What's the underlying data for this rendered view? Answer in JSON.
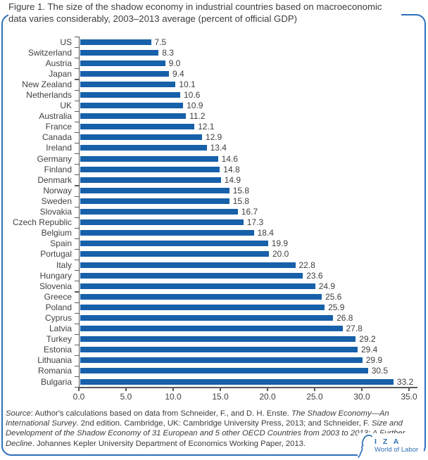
{
  "figure": {
    "title": "Figure 1. The size of the shadow economy in industrial countries based on macroeconomic data varies considerably, 2003–2013 average (percent of official GDP)"
  },
  "chart_data": {
    "type": "bar",
    "orientation": "horizontal",
    "title": "Figure 1. The size of the shadow economy in industrial countries based on macroeconomic data varies considerably, 2003–2013 average (percent of official GDP)",
    "xlabel": "",
    "ylabel": "",
    "xlim": [
      0,
      35
    ],
    "grid": false,
    "data_labels": true,
    "categories": [
      "US",
      "Switzerland",
      "Austria",
      "Japan",
      "New Zealand",
      "Netherlands",
      "UK",
      "Australia",
      "France",
      "Canada",
      "Ireland",
      "Germany",
      "Finland",
      "Denmark",
      "Norway",
      "Sweden",
      "Slovakia",
      "Czech Republic",
      "Belgium",
      "Spain",
      "Portugal",
      "Italy",
      "Hungary",
      "Slovenia",
      "Greece",
      "Poland",
      "Cyprus",
      "Latvia",
      "Turkey",
      "Estonia",
      "Lithuania",
      "Romania",
      "Bulgaria"
    ],
    "values": [
      7.5,
      8.3,
      9.0,
      9.4,
      10.1,
      10.6,
      10.9,
      11.2,
      12.1,
      12.9,
      13.4,
      14.6,
      14.8,
      14.9,
      15.8,
      15.8,
      16.7,
      17.3,
      18.4,
      19.9,
      20.0,
      22.8,
      23.6,
      24.9,
      25.6,
      25.9,
      26.8,
      27.8,
      29.2,
      29.4,
      29.9,
      30.5,
      33.2
    ],
    "x_ticks": [
      0,
      5,
      10,
      15,
      20,
      25,
      30,
      35
    ],
    "x_tick_labels": [
      "0.0",
      "5.0",
      "10.0",
      "15.0",
      "20.0",
      "25.0",
      "30.0",
      "35.0"
    ],
    "bar_color": "#1760aa"
  },
  "source_note": {
    "segments": [
      {
        "text": "Source",
        "italic": true
      },
      {
        "text": ": Author's calculations based on data from Schneider, F., and D. H. Enste. ",
        "italic": false
      },
      {
        "text": "The Shadow Economy—An International Survey",
        "italic": true
      },
      {
        "text": ". 2nd edition. Cambridge, UK: Cambridge University Press, 2013; and Schneider, F. ",
        "italic": false
      },
      {
        "text": "Size and Development of the Shadow Economy of 31 European and 5 other OECD Countries from 2003 to 2013: A Further Decline",
        "italic": true
      },
      {
        "text": ". Johannes Kepler University Department of Economics Working Paper, 2013.",
        "italic": false
      }
    ]
  },
  "logo": {
    "org": "I Z A",
    "tagline": "World of Labor"
  },
  "colors": {
    "frame": "#2c6fba",
    "bar": "#1760aa",
    "axis": "#58595b",
    "text": "#414042",
    "logo": "#2d6fb4"
  }
}
